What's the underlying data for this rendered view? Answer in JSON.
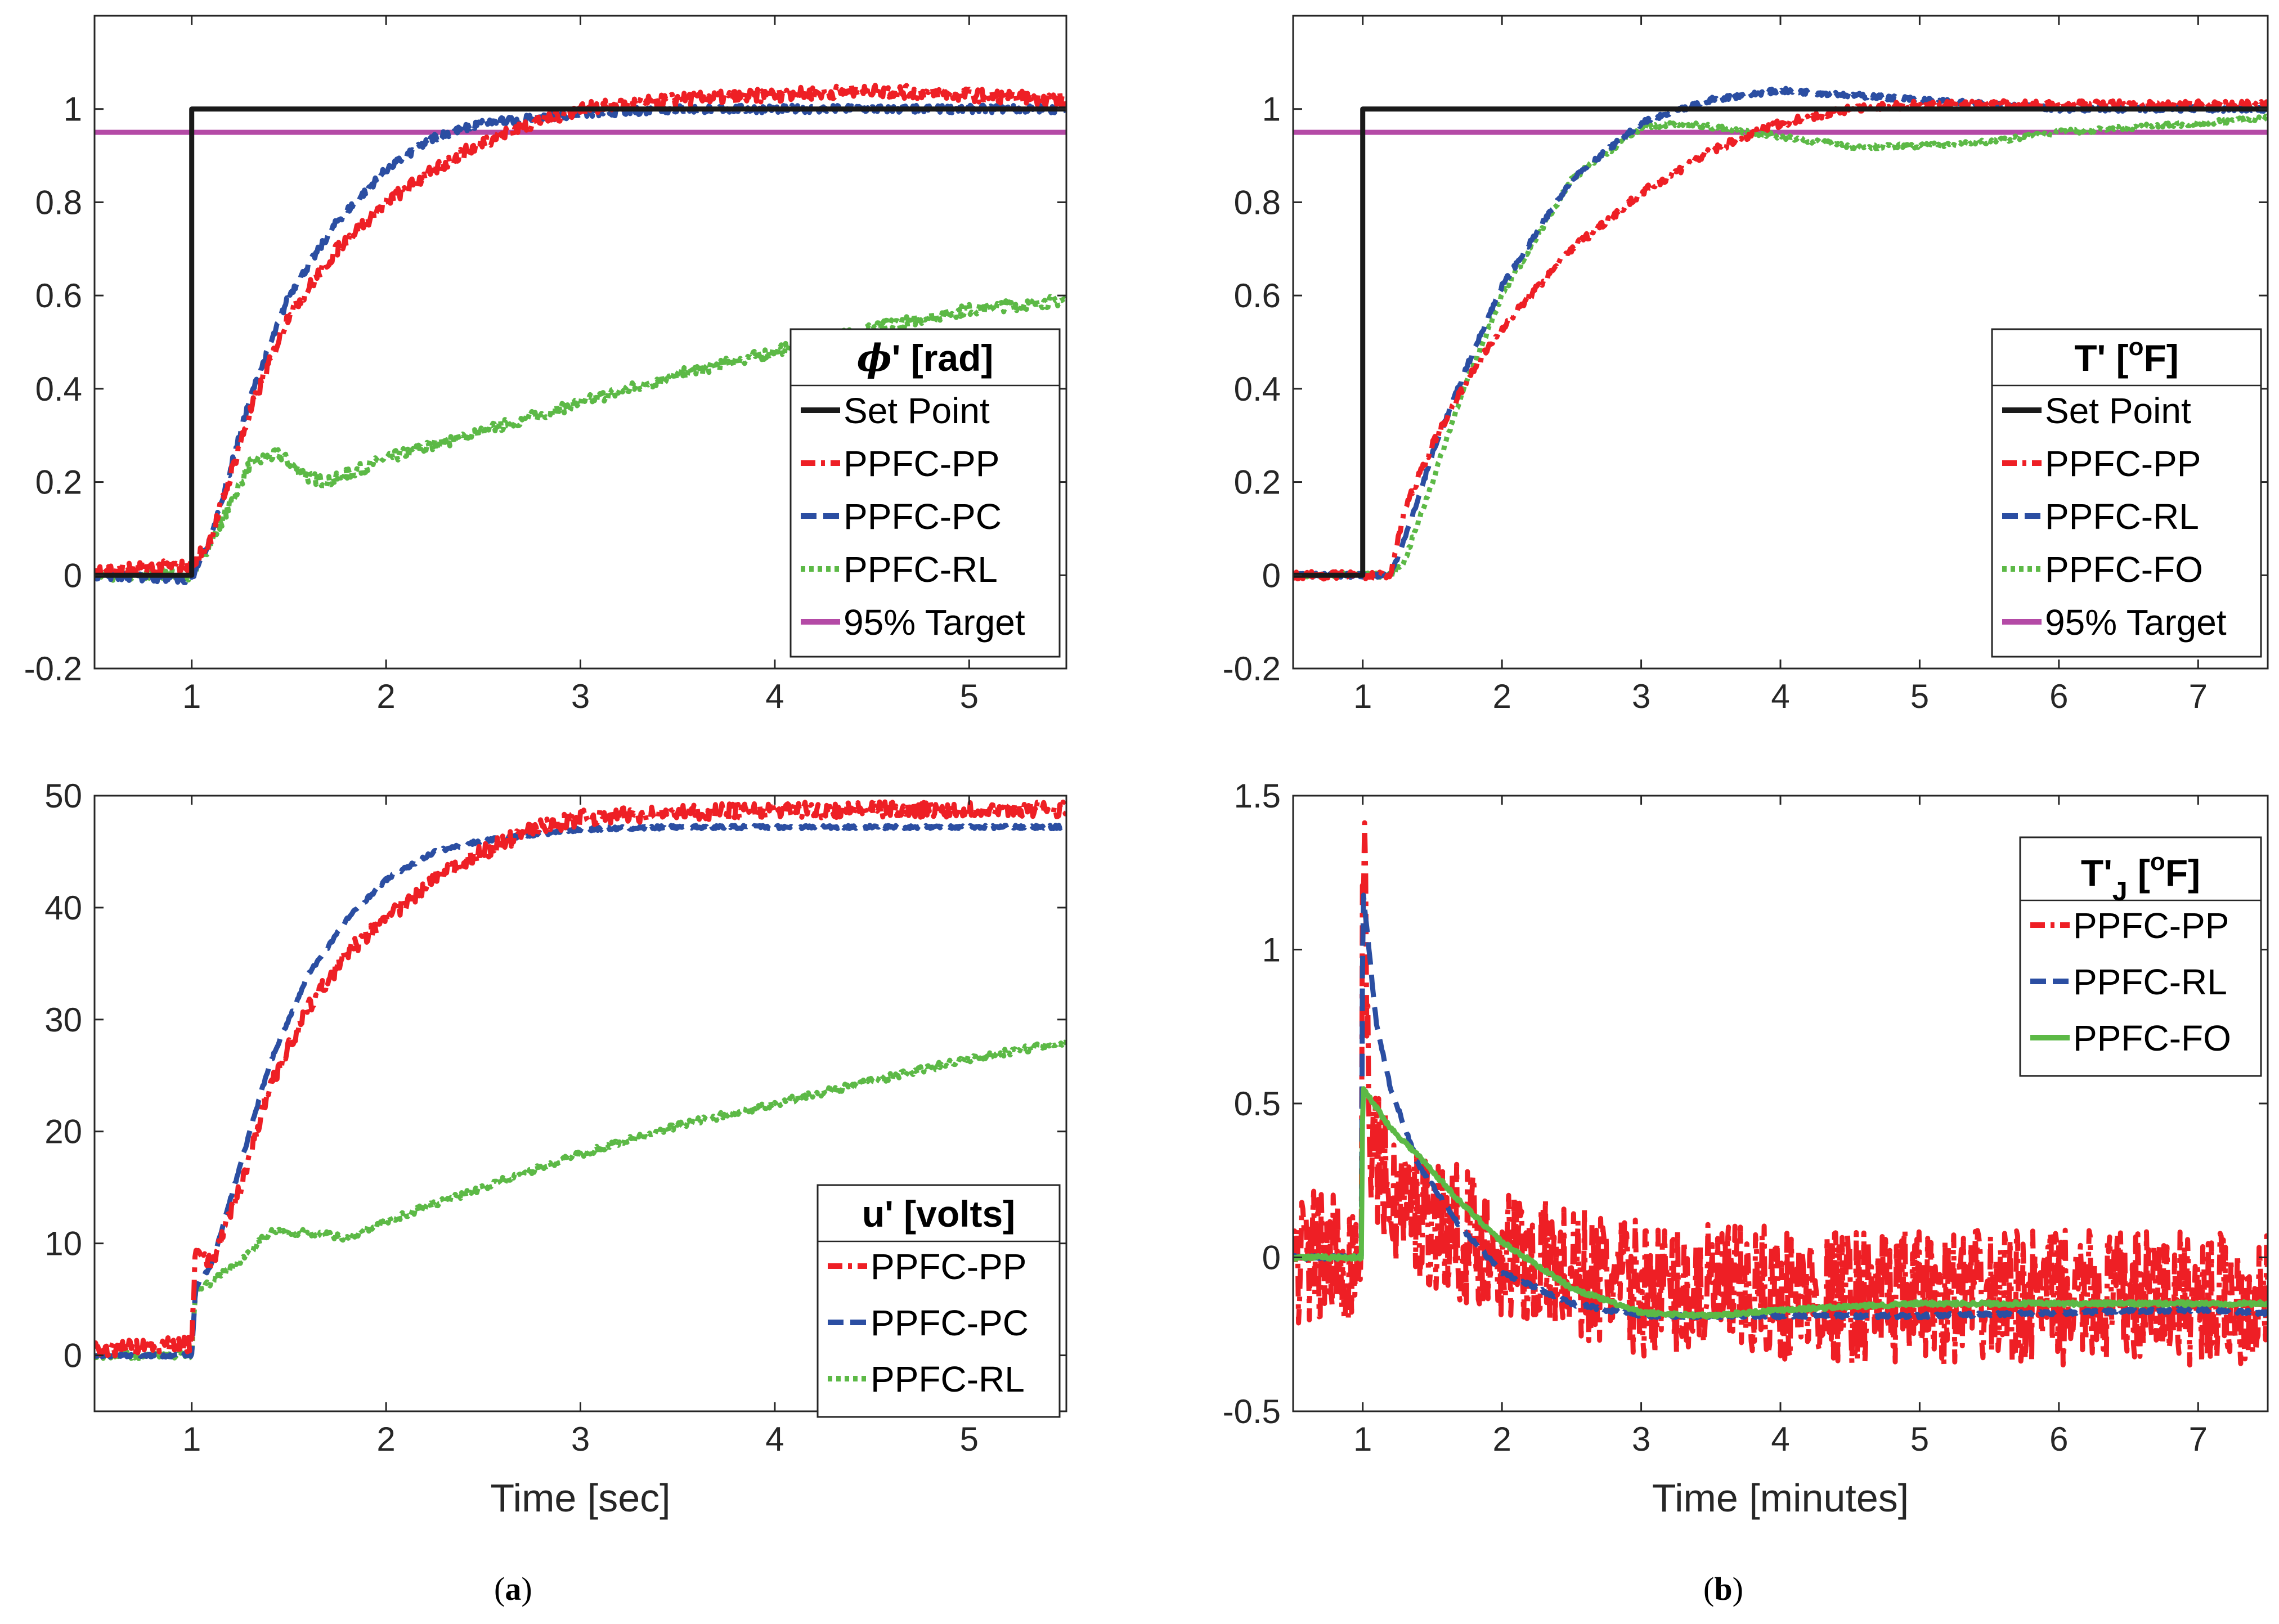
{
  "colors": {
    "setpoint": "#1a1a1a",
    "pp": "#ee1f25",
    "pc": "#2b4ea2",
    "rl": "#5cb946",
    "target": "#b44aa6"
  },
  "captions": {
    "a": "a",
    "b": "b"
  },
  "chart_data": [
    {
      "id": "phi",
      "type": "line",
      "xlim": [
        0.5,
        5.5
      ],
      "ylim": [
        -0.2,
        1.2
      ],
      "xticks": [
        "1",
        "2",
        "3",
        "4",
        "5"
      ],
      "xtick_values": [
        1,
        2,
        3,
        4,
        5
      ],
      "yticks": [
        "-0.2",
        "0",
        "0.2",
        "0.4",
        "0.6",
        "0.8",
        "1"
      ],
      "ytick_values": [
        -0.2,
        0,
        0.2,
        0.4,
        0.6,
        0.8,
        1
      ],
      "xlabel": "",
      "ylabel": "",
      "legend": {
        "placement": "bottom-right",
        "title_sym": "ϕ",
        "title": "' [rad]",
        "entries": [
          {
            "label": "Set Point",
            "series": "setpoint"
          },
          {
            "label": "PPFC-PP",
            "series": "pp"
          },
          {
            "label": "PPFC-PC",
            "series": "pc"
          },
          {
            "label": "PPFC-RL",
            "series": "rl"
          },
          {
            "label": "95% Target",
            "series": "target"
          }
        ]
      },
      "series": [
        {
          "key": "target",
          "name": "95% Target",
          "style": "solid",
          "noise": 0,
          "x": [
            0.5,
            5.5
          ],
          "y": [
            0.95,
            0.95
          ]
        },
        {
          "key": "rl",
          "name": "PPFC-RL",
          "style": "dot",
          "noise": 0.012,
          "x": [
            0.5,
            1.0,
            1.1,
            1.3,
            1.45,
            1.6,
            1.7,
            2.0,
            2.5,
            3.0,
            3.5,
            4.0,
            4.5,
            5.0,
            5.5
          ],
          "y": [
            0.0,
            0.0,
            0.07,
            0.24,
            0.26,
            0.21,
            0.2,
            0.25,
            0.31,
            0.37,
            0.43,
            0.48,
            0.53,
            0.57,
            0.59
          ]
        },
        {
          "key": "pc",
          "name": "PPFC-PC",
          "style": "dash",
          "noise": 0.008,
          "x": [
            0.5,
            1.0,
            1.1,
            1.3,
            1.5,
            1.75,
            2.0,
            2.25,
            2.5,
            3.0,
            3.5,
            4.0,
            4.5,
            5.0,
            5.5
          ],
          "y": [
            0.0,
            -0.01,
            0.08,
            0.38,
            0.6,
            0.76,
            0.87,
            0.94,
            0.97,
            0.99,
            1.0,
            1.0,
            1.0,
            1.0,
            1.0
          ]
        },
        {
          "key": "pp",
          "name": "PPFC-PP",
          "style": "dashdot",
          "noise": 0.014,
          "x": [
            0.5,
            1.0,
            1.1,
            1.3,
            1.5,
            1.75,
            2.0,
            2.25,
            2.5,
            2.75,
            3.0,
            3.5,
            4.0,
            4.5,
            5.0,
            5.5
          ],
          "y": [
            0.01,
            0.02,
            0.08,
            0.35,
            0.56,
            0.7,
            0.8,
            0.87,
            0.93,
            0.97,
            1.0,
            1.02,
            1.03,
            1.04,
            1.03,
            1.02
          ]
        },
        {
          "key": "setpoint",
          "name": "Set Point",
          "style": "solid",
          "noise": 0,
          "x": [
            0.5,
            1.0,
            1.0,
            5.5
          ],
          "y": [
            0,
            0,
            1,
            1
          ]
        }
      ]
    },
    {
      "id": "T",
      "type": "line",
      "xlim": [
        0.5,
        7.5
      ],
      "ylim": [
        -0.2,
        1.2
      ],
      "xticks": [
        "1",
        "2",
        "3",
        "4",
        "5",
        "6",
        "7"
      ],
      "xtick_values": [
        1,
        2,
        3,
        4,
        5,
        6,
        7
      ],
      "yticks": [
        "-0.2",
        "0",
        "0.2",
        "0.4",
        "0.6",
        "0.8",
        "1"
      ],
      "ytick_values": [
        -0.2,
        0,
        0.2,
        0.4,
        0.6,
        0.8,
        1
      ],
      "xlabel": "",
      "ylabel": "",
      "legend": {
        "placement": "bottom-right",
        "title": "T' [",
        "title_sup": "o",
        "title_end": "F]",
        "entries": [
          {
            "label": "Set Point",
            "series": "setpoint"
          },
          {
            "label": "PPFC-PP",
            "series": "pp"
          },
          {
            "label": "PPFC-RL",
            "series": "pc"
          },
          {
            "label": "PPFC-FO",
            "series": "rl"
          },
          {
            "label": "95% Target",
            "series": "target"
          }
        ]
      },
      "series": [
        {
          "key": "target",
          "name": "95% Target",
          "style": "solid",
          "noise": 0,
          "x": [
            0.5,
            7.5
          ],
          "y": [
            0.95,
            0.95
          ]
        },
        {
          "key": "rl",
          "name": "PPFC-FO",
          "style": "dot",
          "noise": 0.005,
          "x": [
            0.5,
            1.2,
            1.3,
            1.5,
            1.7,
            2.0,
            2.5,
            3.0,
            3.3,
            3.8,
            4.5,
            5.0,
            5.5,
            6.0,
            7.0,
            7.5
          ],
          "y": [
            0.0,
            0.0,
            0.03,
            0.2,
            0.38,
            0.6,
            0.85,
            0.96,
            0.97,
            0.95,
            0.92,
            0.92,
            0.93,
            0.95,
            0.97,
            0.98
          ]
        },
        {
          "key": "pc",
          "name": "PPFC-RL",
          "style": "dash",
          "noise": 0.005,
          "x": [
            0.5,
            1.2,
            1.35,
            1.5,
            1.75,
            2.0,
            2.5,
            3.0,
            3.5,
            4.0,
            4.5,
            5.0,
            5.5,
            6.0,
            7.5
          ],
          "y": [
            0.0,
            0.0,
            0.12,
            0.26,
            0.45,
            0.62,
            0.85,
            0.97,
            1.02,
            1.04,
            1.03,
            1.02,
            1.01,
            1.0,
            1.0
          ]
        },
        {
          "key": "pp",
          "name": "PPFC-PP",
          "style": "dashdot",
          "noise": 0.008,
          "x": [
            0.5,
            1.2,
            1.3,
            1.5,
            1.75,
            2.0,
            2.5,
            3.0,
            3.5,
            4.0,
            4.5,
            5.0,
            5.5,
            6.0,
            7.0,
            7.5
          ],
          "y": [
            0.0,
            0.0,
            0.14,
            0.28,
            0.42,
            0.53,
            0.7,
            0.82,
            0.91,
            0.97,
            1.0,
            1.01,
            1.01,
            1.01,
            1.01,
            1.01
          ]
        },
        {
          "key": "setpoint",
          "name": "Set Point",
          "style": "solid",
          "noise": 0,
          "x": [
            0.5,
            1.0,
            1.0,
            7.5
          ],
          "y": [
            0,
            0,
            1,
            1
          ]
        }
      ]
    },
    {
      "id": "u",
      "type": "line",
      "xlim": [
        0.5,
        5.5
      ],
      "ylim": [
        -5,
        50
      ],
      "xticks": [
        "1",
        "2",
        "3",
        "4",
        "5"
      ],
      "xtick_values": [
        1,
        2,
        3,
        4,
        5
      ],
      "yticks": [
        "0",
        "10",
        "20",
        "30",
        "40",
        "50"
      ],
      "ytick_values": [
        0,
        10,
        20,
        30,
        40,
        50
      ],
      "xlabel": "Time [sec]",
      "ylabel": "",
      "legend": {
        "placement": "bottom-right",
        "title": "u' [volts]",
        "entries": [
          {
            "label": "PPFC-PP",
            "series": "pp"
          },
          {
            "label": "PPFC-PC",
            "series": "pc"
          },
          {
            "label": "PPFC-RL",
            "series": "rl"
          }
        ]
      },
      "series": [
        {
          "key": "rl",
          "name": "PPFC-RL",
          "style": "dot",
          "noise": 0.3,
          "x": [
            0.5,
            1.0,
            1.02,
            1.1,
            1.25,
            1.4,
            1.6,
            1.8,
            2.0,
            2.5,
            3.0,
            3.5,
            4.0,
            4.5,
            5.0,
            5.5
          ],
          "y": [
            0.0,
            0.0,
            6.0,
            6.5,
            8.5,
            11.0,
            11.0,
            10.5,
            12.0,
            15.0,
            18.0,
            20.5,
            22.5,
            24.5,
            26.5,
            28.0
          ]
        },
        {
          "key": "pc",
          "name": "PPFC-PC",
          "style": "dash",
          "noise": 0.15,
          "x": [
            0.5,
            1.0,
            1.02,
            1.1,
            1.25,
            1.4,
            1.6,
            1.8,
            2.0,
            2.25,
            2.5,
            3.0,
            3.5,
            4.0,
            5.0,
            5.5
          ],
          "y": [
            0.0,
            0.0,
            6.0,
            8.0,
            17.0,
            26.0,
            34.0,
            39.0,
            42.5,
            45.0,
            46.0,
            47.0,
            47.2,
            47.2,
            47.2,
            47.2
          ]
        },
        {
          "key": "pp",
          "name": "PPFC-PP",
          "style": "dashdot",
          "noise": 0.7,
          "x": [
            0.5,
            1.0,
            1.02,
            1.1,
            1.25,
            1.4,
            1.6,
            1.8,
            2.0,
            2.25,
            2.5,
            2.75,
            3.0,
            3.5,
            4.0,
            5.0,
            5.5
          ],
          "y": [
            0.5,
            1.0,
            10.0,
            8.0,
            15.0,
            24.0,
            31.0,
            36.0,
            39.0,
            42.5,
            45.0,
            47.0,
            48.0,
            48.5,
            48.7,
            48.8,
            48.8
          ]
        }
      ]
    },
    {
      "id": "TJ",
      "type": "line",
      "xlim": [
        0.5,
        7.5
      ],
      "ylim": [
        -0.5,
        1.5
      ],
      "xticks": [
        "1",
        "2",
        "3",
        "4",
        "5",
        "6",
        "7"
      ],
      "xtick_values": [
        1,
        2,
        3,
        4,
        5,
        6,
        7
      ],
      "yticks": [
        "-0.5",
        "0",
        "0.5",
        "1",
        "1.5"
      ],
      "ytick_values": [
        -0.5,
        0,
        0.5,
        1,
        1.5
      ],
      "xlabel": "Time [minutes]",
      "ylabel": "",
      "legend": {
        "placement": "top-right",
        "title": "T'",
        "title_sub": "J",
        "title_mid": " [",
        "title_sup": "o",
        "title_end": "F]",
        "entries": [
          {
            "label": "PPFC-PP",
            "series": "pp"
          },
          {
            "label": "PPFC-RL",
            "series": "pc"
          },
          {
            "label": "PPFC-FO",
            "series": "rl"
          }
        ]
      },
      "series": [
        {
          "key": "pp",
          "name": "PPFC-PP",
          "style": "dashdot",
          "noise": 0.22,
          "x": [
            0.5,
            0.99,
            1.0,
            1.05,
            1.2,
            1.5,
            2.0,
            2.5,
            3.0,
            4.0,
            5.0,
            6.0,
            7.5
          ],
          "y": [
            0.0,
            0.0,
            1.5,
            0.4,
            0.2,
            0.12,
            0.02,
            -0.05,
            -0.1,
            -0.12,
            -0.13,
            -0.13,
            -0.13
          ]
        },
        {
          "key": "pc",
          "name": "PPFC-RL",
          "style": "dash",
          "noise": 0.006,
          "x": [
            0.5,
            0.99,
            1.0,
            1.1,
            1.2,
            1.4,
            1.7,
            2.0,
            2.5,
            3.0,
            3.5,
            4.0,
            5.0,
            6.0,
            7.0,
            7.5
          ],
          "y": [
            0.0,
            0.0,
            1.2,
            0.75,
            0.55,
            0.3,
            0.1,
            -0.05,
            -0.15,
            -0.19,
            -0.19,
            -0.19,
            -0.19,
            -0.18,
            -0.17,
            -0.18
          ]
        },
        {
          "key": "rl",
          "name": "PPFC-FO",
          "style": "dotsolid",
          "noise": 0.006,
          "x": [
            0.5,
            0.99,
            1.0,
            1.2,
            1.4,
            1.7,
            2.0,
            2.5,
            3.0,
            3.5,
            4.0,
            5.0,
            6.0,
            7.0,
            7.5
          ],
          "y": [
            0.0,
            0.0,
            0.55,
            0.42,
            0.33,
            0.18,
            0.05,
            -0.1,
            -0.18,
            -0.19,
            -0.17,
            -0.15,
            -0.15,
            -0.15,
            -0.15
          ]
        }
      ]
    }
  ]
}
